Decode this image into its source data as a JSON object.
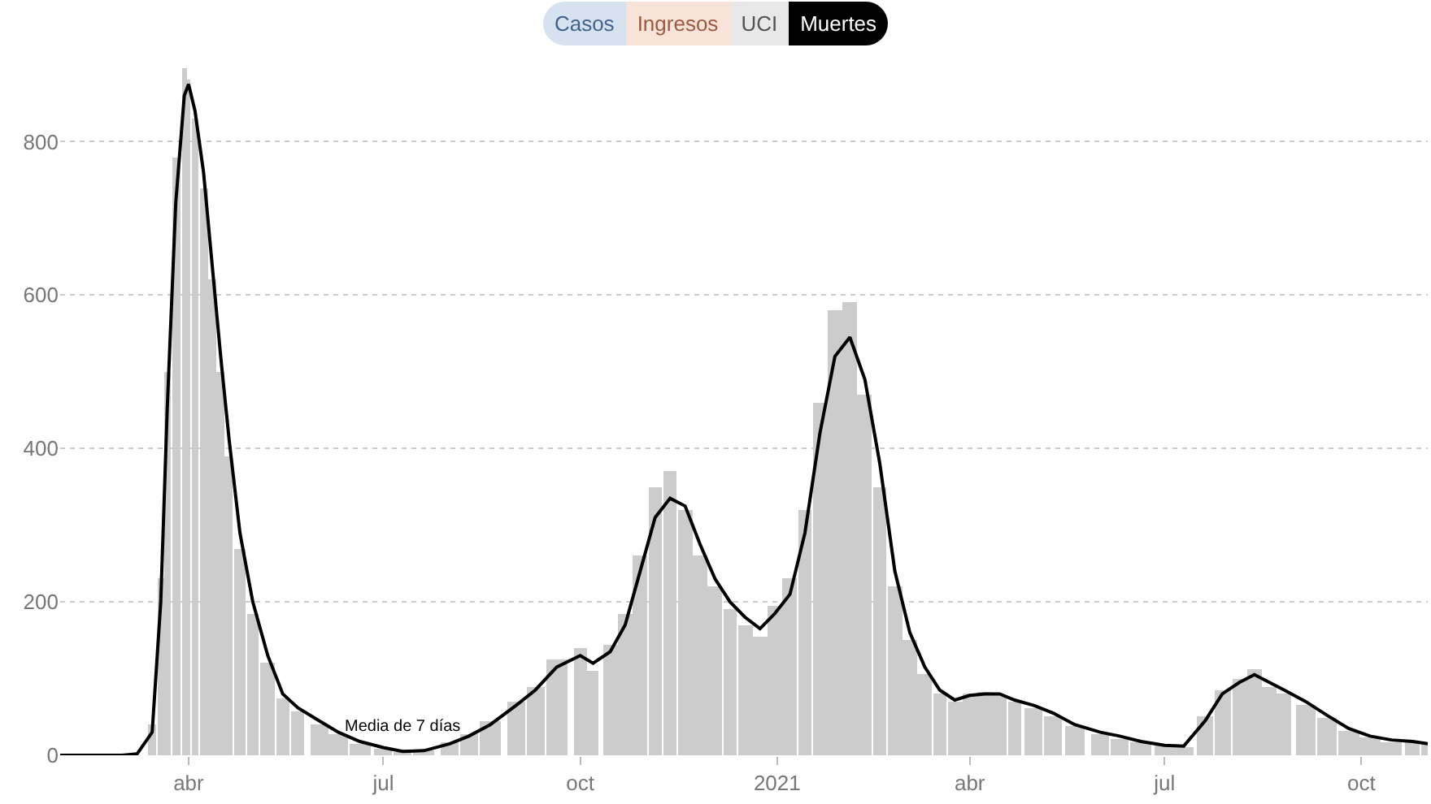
{
  "chart_data": {
    "type": "bar",
    "x": [
      "2020-02-01",
      "2020-02-15",
      "2020-03-01",
      "2020-03-08",
      "2020-03-15",
      "2020-03-19",
      "2020-03-22",
      "2020-03-26",
      "2020-03-30",
      "2020-04-01",
      "2020-04-04",
      "2020-04-08",
      "2020-04-12",
      "2020-04-16",
      "2020-04-20",
      "2020-04-25",
      "2020-05-01",
      "2020-05-08",
      "2020-05-15",
      "2020-05-22",
      "2020-06-01",
      "2020-06-10",
      "2020-06-20",
      "2020-07-01",
      "2020-07-10",
      "2020-07-20",
      "2020-08-01",
      "2020-08-10",
      "2020-08-20",
      "2020-09-01",
      "2020-09-10",
      "2020-09-20",
      "2020-10-01",
      "2020-10-07",
      "2020-10-15",
      "2020-10-22",
      "2020-10-29",
      "2020-11-05",
      "2020-11-12",
      "2020-11-19",
      "2020-11-26",
      "2020-12-03",
      "2020-12-10",
      "2020-12-17",
      "2020-12-24",
      "2020-12-31",
      "2021-01-07",
      "2021-01-14",
      "2021-01-21",
      "2021-01-28",
      "2021-02-04",
      "2021-02-11",
      "2021-02-18",
      "2021-02-25",
      "2021-03-04",
      "2021-03-11",
      "2021-03-18",
      "2021-03-25",
      "2021-04-01",
      "2021-04-08",
      "2021-04-15",
      "2021-04-22",
      "2021-05-01",
      "2021-05-10",
      "2021-05-20",
      "2021-06-01",
      "2021-06-10",
      "2021-06-20",
      "2021-07-01",
      "2021-07-10",
      "2021-07-20",
      "2021-07-28",
      "2021-08-05",
      "2021-08-12",
      "2021-08-19",
      "2021-08-26",
      "2021-09-05",
      "2021-09-15",
      "2021-09-25",
      "2021-10-05",
      "2021-10-15",
      "2021-10-25",
      "2021-11-01"
    ],
    "series": [
      {
        "color": "#cccccc",
        "values": [
          0,
          0,
          0,
          null,
          40,
          230,
          500,
          780,
          895,
          880,
          830,
          740,
          620,
          500,
          390,
          270,
          185,
          120,
          75,
          58,
          40,
          28,
          15,
          8,
          4,
          7,
          18,
          28,
          45,
          70,
          90,
          125,
          140,
          110,
          145,
          185,
          260,
          350,
          370,
          320,
          260,
          220,
          190,
          170,
          155,
          195,
          230,
          320,
          460,
          580,
          590,
          470,
          350,
          220,
          150,
          105,
          80,
          70,
          80,
          82,
          78,
          70,
          62,
          50,
          38,
          28,
          22,
          16,
          12,
          10,
          50,
          85,
          100,
          112,
          90,
          80,
          66,
          48,
          32,
          24,
          18,
          16,
          14
        ]
      },
      {
        "type": "line",
        "name": "Media de 7 días",
        "color": "#000000",
        "values": [
          0,
          0,
          0,
          2,
          30,
          200,
          450,
          720,
          860,
          875,
          840,
          760,
          640,
          520,
          410,
          290,
          200,
          130,
          80,
          62,
          45,
          30,
          18,
          10,
          5,
          6,
          15,
          25,
          40,
          65,
          85,
          115,
          130,
          120,
          135,
          170,
          240,
          310,
          335,
          325,
          275,
          230,
          200,
          180,
          165,
          185,
          210,
          290,
          420,
          520,
          545,
          490,
          380,
          240,
          160,
          115,
          85,
          72,
          78,
          80,
          80,
          72,
          65,
          55,
          40,
          30,
          25,
          18,
          13,
          12,
          45,
          80,
          95,
          105,
          95,
          85,
          70,
          52,
          35,
          25,
          20,
          18,
          15
        ]
      }
    ],
    "xlim": [
      "2020-02-01",
      "2021-11-01"
    ],
    "xticks": [
      {
        "value": "2020-04-01",
        "label": "abr"
      },
      {
        "value": "2020-07-01",
        "label": "jul"
      },
      {
        "value": "2020-10-01",
        "label": "oct"
      },
      {
        "value": "2021-01-01",
        "label": "2021"
      },
      {
        "value": "2021-04-01",
        "label": "abr"
      },
      {
        "value": "2021-07-01",
        "label": "jul"
      },
      {
        "value": "2021-10-01",
        "label": "oct"
      }
    ],
    "ylim": [
      0,
      900
    ],
    "yticks": [
      0,
      200,
      400,
      600,
      800
    ],
    "grid": "y",
    "line_style": "solid",
    "annotations": [
      "Casos",
      "Ingresos",
      "UCI",
      "Muertes"
    ]
  }
}
